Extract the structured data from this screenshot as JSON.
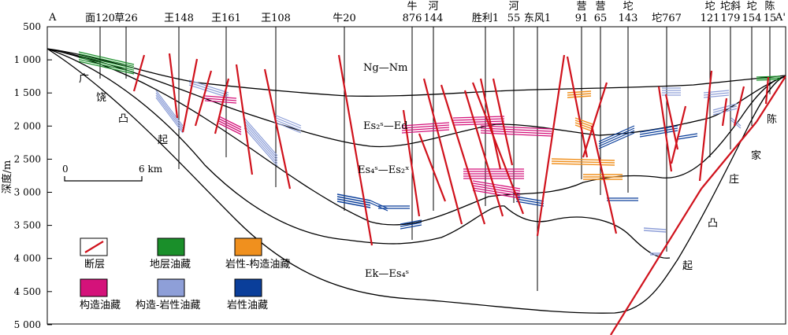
{
  "section": {
    "start_label": "A",
    "end_label": "A'",
    "axis_title": "深度/m",
    "depth_ticks": [
      "500",
      "1 000",
      "1 500",
      "2 000",
      "2 500",
      "3 000",
      "3 500",
      "4 000",
      "4 500",
      "5 000"
    ],
    "wells": [
      {
        "name": "面120"
      },
      {
        "name": "草26"
      },
      {
        "name": "王148"
      },
      {
        "name": "王161"
      },
      {
        "name": "王108"
      },
      {
        "name": "牛20"
      },
      {
        "name": "牛\n876"
      },
      {
        "name": "河\n144"
      },
      {
        "name": "胜利1"
      },
      {
        "name": "河\n55"
      },
      {
        "name": "东风1"
      },
      {
        "name": "营\n91"
      },
      {
        "name": "营\n65"
      },
      {
        "name": "坨\n143"
      },
      {
        "name": "坨767"
      },
      {
        "name": "坨\n121"
      },
      {
        "name": "坨斜\n179"
      },
      {
        "name": "坨\n154"
      },
      {
        "name": "陈\n15"
      }
    ],
    "formations": {
      "ng_nm": "Ng—Nm",
      "es2_ed": "Es₂ˢ—Ed",
      "es4_es2": "Es₄ˢ—Es₂ˣ",
      "ek_es4": "Ek—Es₄ˢ"
    },
    "uplifts": {
      "left": [
        "广",
        "饶",
        "凸",
        "起"
      ],
      "right": [
        "陈",
        "家",
        "庄",
        "凸",
        "起"
      ]
    },
    "scale": {
      "zero": "0",
      "length": "6 km"
    }
  },
  "legend": [
    {
      "label": "断层",
      "kind": "fault"
    },
    {
      "label": "地层油藏",
      "color": "#1a8f2a"
    },
    {
      "label": "岩性-构造油藏",
      "color": "#f0901e"
    },
    {
      "label": "构造油藏",
      "color": "#d4127a"
    },
    {
      "label": "构造-岩性油藏",
      "color": "#8e9fd8"
    },
    {
      "label": "岩性油藏",
      "color": "#0a3e9a"
    }
  ],
  "colors": {
    "fault": "#d0121c",
    "boundary": "#000000"
  }
}
